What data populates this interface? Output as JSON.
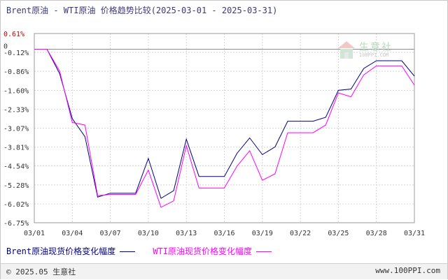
{
  "header": {
    "title": "Brent原油 - WTI原油 价格趋势比较(2025-03-01 - 2025-03-31)"
  },
  "chart_data": {
    "type": "line",
    "title": "Brent原油 - WTI原油 价格趋势比较(2025-03-01 - 2025-03-31)",
    "xlabel": "",
    "ylabel": "",
    "y_unit": "%",
    "x_tick_labels": [
      "03/01",
      "03/04",
      "03/07",
      "03/10",
      "03/13",
      "03/16",
      "03/19",
      "03/22",
      "03/25",
      "03/28",
      "03/31"
    ],
    "y_tick_labels": [
      "0.61%",
      "-0.12%",
      "-0.86%",
      "-1.60%",
      "-2.33%",
      "-3.07%",
      "-3.81%",
      "-4.54%",
      "-5.28%",
      "-6.02%",
      "-6.75%"
    ],
    "y_ticks": [
      0.61,
      -0.12,
      -0.86,
      -1.6,
      -2.33,
      -3.07,
      -3.81,
      -4.54,
      -5.28,
      -6.02,
      -6.75
    ],
    "ylim": [
      -6.75,
      0.61
    ],
    "xlim": [
      1,
      31
    ],
    "zero_line": 0,
    "zero_label": "0",
    "grid": true,
    "legend_position": "bottom-left",
    "x": [
      1,
      2,
      3,
      4,
      5,
      6,
      7,
      8,
      9,
      10,
      11,
      12,
      13,
      14,
      15,
      16,
      17,
      18,
      19,
      20,
      21,
      22,
      23,
      24,
      25,
      26,
      27,
      28,
      29,
      30,
      31
    ],
    "series": [
      {
        "name": "Brent原油现货价格变化幅度",
        "color": "#000080",
        "values": [
          0.0,
          0.0,
          -0.95,
          -2.7,
          -3.4,
          -5.75,
          -5.6,
          -5.6,
          -5.6,
          -4.25,
          -5.8,
          -5.5,
          -3.5,
          -4.95,
          -4.95,
          -4.95,
          -4.05,
          -3.45,
          -4.1,
          -3.8,
          -2.8,
          -2.8,
          -2.8,
          -2.65,
          -1.6,
          -1.55,
          -0.75,
          -0.45,
          -0.45,
          -0.45,
          -1.05
        ]
      },
      {
        "name": "WTI原油现货价格变化幅度",
        "color": "#ff00ff",
        "values": [
          0.0,
          0.0,
          -0.85,
          -2.85,
          -2.95,
          -5.7,
          -5.65,
          -5.65,
          -5.65,
          -4.7,
          -6.15,
          -5.9,
          -3.75,
          -5.4,
          -5.4,
          -5.4,
          -4.55,
          -3.95,
          -5.1,
          -4.85,
          -3.25,
          -3.25,
          -3.25,
          -2.95,
          -1.7,
          -1.85,
          -1.0,
          -0.65,
          -0.65,
          -0.65,
          -1.4
        ]
      }
    ]
  },
  "legend": {
    "items": [
      {
        "label": "Brent原油现货价格变化幅度",
        "color": "#000080"
      },
      {
        "label": "WTI原油现货价格变化幅度",
        "color": "#ff00ff"
      }
    ]
  },
  "watermark": {
    "text": "生意社",
    "sub": "100PPI.COM"
  },
  "footer": {
    "left": "© 2025.05 生意社",
    "right": "www.100PPI.com"
  }
}
